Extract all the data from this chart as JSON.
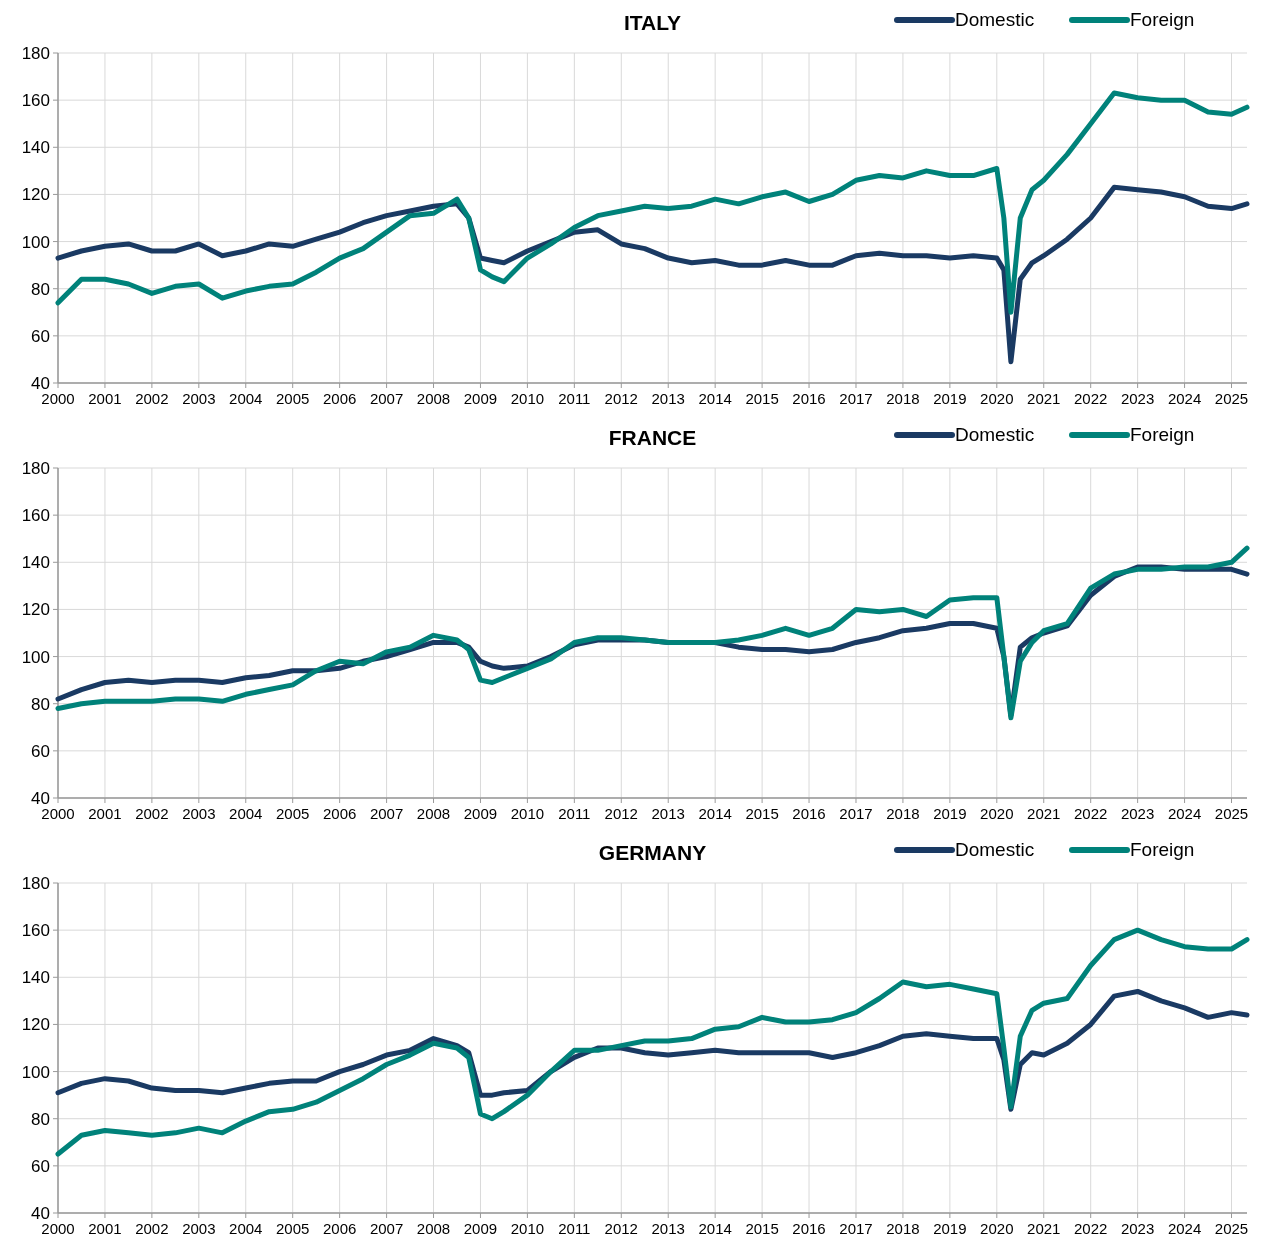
{
  "chart_data": [
    {
      "type": "line",
      "title": "ITALY",
      "x": [
        2000,
        2000.5,
        2001,
        2001.5,
        2002,
        2002.5,
        2003,
        2003.5,
        2004,
        2004.5,
        2005,
        2005.5,
        2006,
        2006.5,
        2007,
        2007.5,
        2008,
        2008.5,
        2008.75,
        2009,
        2009.25,
        2009.5,
        2010,
        2010.5,
        2011,
        2011.5,
        2012,
        2012.5,
        2013,
        2013.5,
        2014,
        2014.5,
        2015,
        2015.5,
        2016,
        2016.5,
        2017,
        2017.5,
        2018,
        2018.5,
        2019,
        2019.5,
        2020,
        2020.15,
        2020.3,
        2020.5,
        2020.75,
        2021,
        2021.5,
        2022,
        2022.5,
        2023,
        2023.5,
        2024,
        2024.5,
        2025,
        2025.33
      ],
      "series": [
        {
          "name": "Domestic",
          "color": "#1a3a63",
          "values": [
            93,
            96,
            98,
            99,
            96,
            96,
            99,
            94,
            96,
            99,
            98,
            101,
            104,
            108,
            111,
            113,
            115,
            116,
            110,
            93,
            92,
            91,
            96,
            100,
            104,
            105,
            99,
            97,
            93,
            91,
            92,
            90,
            90,
            92,
            90,
            90,
            94,
            95,
            94,
            94,
            93,
            94,
            93,
            88,
            49,
            84,
            91,
            94,
            101,
            110,
            123,
            122,
            121,
            119,
            115,
            114,
            116
          ]
        },
        {
          "name": "Foreign",
          "color": "#00827a",
          "values": [
            74,
            84,
            84,
            82,
            78,
            81,
            82,
            76,
            79,
            81,
            82,
            87,
            93,
            97,
            104,
            111,
            112,
            118,
            110,
            88,
            85,
            83,
            93,
            99,
            106,
            111,
            113,
            115,
            114,
            115,
            118,
            116,
            119,
            121,
            117,
            120,
            126,
            128,
            127,
            130,
            128,
            128,
            131,
            110,
            70,
            110,
            122,
            126,
            137,
            150,
            163,
            161,
            160,
            160,
            155,
            154,
            157
          ]
        }
      ],
      "xlim": [
        2000,
        2025.33
      ],
      "xticks": [
        2000,
        2001,
        2002,
        2003,
        2004,
        2005,
        2006,
        2007,
        2008,
        2009,
        2010,
        2011,
        2012,
        2013,
        2014,
        2015,
        2016,
        2017,
        2018,
        2019,
        2020,
        2021,
        2022,
        2023,
        2024,
        2025
      ],
      "ylim": [
        40,
        180
      ],
      "yticks": [
        40,
        60,
        80,
        100,
        120,
        140,
        160,
        180
      ],
      "grid": true,
      "legend": "top right"
    },
    {
      "type": "line",
      "title": "FRANCE",
      "x": [
        2000,
        2000.5,
        2001,
        2001.5,
        2002,
        2002.5,
        2003,
        2003.5,
        2004,
        2004.5,
        2005,
        2005.5,
        2006,
        2006.5,
        2007,
        2007.5,
        2008,
        2008.5,
        2008.75,
        2009,
        2009.25,
        2009.5,
        2010,
        2010.5,
        2011,
        2011.5,
        2012,
        2012.5,
        2013,
        2013.5,
        2014,
        2014.5,
        2015,
        2015.5,
        2016,
        2016.5,
        2017,
        2017.5,
        2018,
        2018.5,
        2019,
        2019.5,
        2020,
        2020.15,
        2020.3,
        2020.5,
        2020.75,
        2021,
        2021.5,
        2022,
        2022.5,
        2023,
        2023.5,
        2024,
        2024.5,
        2025,
        2025.33
      ],
      "series": [
        {
          "name": "Domestic",
          "color": "#1a3a63",
          "values": [
            82,
            86,
            89,
            90,
            89,
            90,
            90,
            89,
            91,
            92,
            94,
            94,
            95,
            98,
            100,
            103,
            106,
            106,
            104,
            98,
            96,
            95,
            96,
            100,
            105,
            107,
            107,
            107,
            106,
            106,
            106,
            104,
            103,
            103,
            102,
            103,
            106,
            108,
            111,
            112,
            114,
            114,
            112,
            100,
            75,
            104,
            108,
            110,
            113,
            126,
            134,
            138,
            138,
            137,
            137,
            137,
            135
          ]
        },
        {
          "name": "Foreign",
          "color": "#00827a",
          "values": [
            78,
            80,
            81,
            81,
            81,
            82,
            82,
            81,
            84,
            86,
            88,
            94,
            98,
            97,
            102,
            104,
            109,
            107,
            103,
            90,
            89,
            91,
            95,
            99,
            106,
            108,
            108,
            107,
            106,
            106,
            106,
            107,
            109,
            112,
            109,
            112,
            120,
            119,
            120,
            117,
            124,
            125,
            125,
            100,
            74,
            98,
            106,
            111,
            114,
            129,
            135,
            137,
            137,
            138,
            138,
            140,
            146
          ]
        }
      ],
      "xlim": [
        2000,
        2025.33
      ],
      "xticks": [
        2000,
        2001,
        2002,
        2003,
        2004,
        2005,
        2006,
        2007,
        2008,
        2009,
        2010,
        2011,
        2012,
        2013,
        2014,
        2015,
        2016,
        2017,
        2018,
        2019,
        2020,
        2021,
        2022,
        2023,
        2024,
        2025
      ],
      "ylim": [
        40,
        180
      ],
      "yticks": [
        40,
        60,
        80,
        100,
        120,
        140,
        160,
        180
      ],
      "grid": true,
      "legend": "top right"
    },
    {
      "type": "line",
      "title": "GERMANY",
      "x": [
        2000,
        2000.5,
        2001,
        2001.5,
        2002,
        2002.5,
        2003,
        2003.5,
        2004,
        2004.5,
        2005,
        2005.5,
        2006,
        2006.5,
        2007,
        2007.5,
        2008,
        2008.5,
        2008.75,
        2009,
        2009.25,
        2009.5,
        2010,
        2010.5,
        2011,
        2011.5,
        2012,
        2012.5,
        2013,
        2013.5,
        2014,
        2014.5,
        2015,
        2015.5,
        2016,
        2016.5,
        2017,
        2017.5,
        2018,
        2018.5,
        2019,
        2019.5,
        2020,
        2020.15,
        2020.3,
        2020.5,
        2020.75,
        2021,
        2021.5,
        2022,
        2022.5,
        2023,
        2023.5,
        2024,
        2024.5,
        2025,
        2025.33
      ],
      "series": [
        {
          "name": "Domestic",
          "color": "#1a3a63",
          "values": [
            91,
            95,
            97,
            96,
            93,
            92,
            92,
            91,
            93,
            95,
            96,
            96,
            100,
            103,
            107,
            109,
            114,
            111,
            108,
            90,
            90,
            91,
            92,
            100,
            106,
            110,
            110,
            108,
            107,
            108,
            109,
            108,
            108,
            108,
            108,
            106,
            108,
            111,
            115,
            116,
            115,
            114,
            114,
            105,
            84,
            103,
            108,
            107,
            112,
            120,
            132,
            134,
            130,
            127,
            123,
            125,
            124
          ]
        },
        {
          "name": "Foreign",
          "color": "#00827a",
          "values": [
            65,
            73,
            75,
            74,
            73,
            74,
            76,
            74,
            79,
            83,
            84,
            87,
            92,
            97,
            103,
            107,
            112,
            110,
            106,
            82,
            80,
            83,
            90,
            100,
            109,
            109,
            111,
            113,
            113,
            114,
            118,
            119,
            123,
            121,
            121,
            122,
            125,
            131,
            138,
            136,
            137,
            135,
            133,
            110,
            85,
            115,
            126,
            129,
            131,
            145,
            156,
            160,
            156,
            153,
            152,
            152,
            156
          ]
        }
      ],
      "xlim": [
        2000,
        2025.33
      ],
      "xticks": [
        2000,
        2001,
        2002,
        2003,
        2004,
        2005,
        2006,
        2007,
        2008,
        2009,
        2010,
        2011,
        2012,
        2013,
        2014,
        2015,
        2016,
        2017,
        2018,
        2019,
        2020,
        2021,
        2022,
        2023,
        2024,
        2025
      ],
      "ylim": [
        40,
        180
      ],
      "yticks": [
        40,
        60,
        80,
        100,
        120,
        140,
        160,
        180
      ],
      "grid": true,
      "legend": "top right"
    }
  ]
}
